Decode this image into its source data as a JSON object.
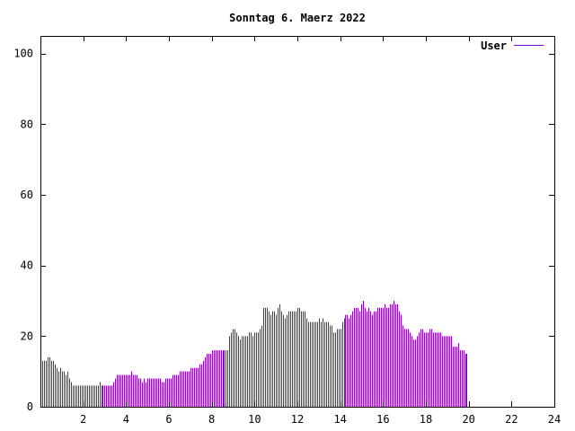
{
  "chart_data": {
    "type": "bar",
    "title": "Sonntag 6. Maerz 2022",
    "xlabel": "",
    "ylabel": "",
    "xlim": [
      0,
      24
    ],
    "ylim": [
      0,
      105
    ],
    "x_ticks": [
      2,
      4,
      6,
      8,
      10,
      12,
      14,
      16,
      18,
      20,
      22,
      24
    ],
    "y_ticks": [
      0,
      20,
      40,
      60,
      80,
      100
    ],
    "grid": false,
    "legend_position": "top-right",
    "series": [
      {
        "name": "User",
        "color": "#9400d3",
        "x_start": 0,
        "x_step": 0.0833,
        "values": [
          14,
          13,
          13,
          13,
          14,
          14,
          13,
          13,
          12,
          11,
          10,
          11,
          10,
          10,
          9,
          10,
          8,
          7,
          6,
          6,
          6,
          6,
          6,
          6,
          6,
          6,
          6,
          6,
          6,
          6,
          6,
          6,
          6,
          7,
          6,
          6,
          6,
          6,
          6,
          6,
          6,
          7,
          8,
          9,
          9,
          9,
          9,
          9,
          9,
          9,
          9,
          10,
          9,
          9,
          9,
          8,
          8,
          7,
          8,
          7,
          8,
          8,
          8,
          8,
          8,
          8,
          8,
          8,
          7,
          7,
          8,
          8,
          8,
          8,
          9,
          9,
          9,
          9,
          10,
          10,
          10,
          10,
          10,
          10,
          11,
          11,
          11,
          11,
          11,
          12,
          12,
          13,
          14,
          15,
          15,
          15,
          16,
          16,
          16,
          16,
          16,
          16,
          16,
          16,
          16,
          16,
          20,
          21,
          22,
          22,
          21,
          20,
          19,
          20,
          20,
          20,
          20,
          21,
          21,
          20,
          21,
          21,
          21,
          22,
          23,
          28,
          28,
          28,
          27,
          26,
          27,
          27,
          26,
          28,
          29,
          27,
          26,
          25,
          26,
          27,
          27,
          27,
          27,
          27,
          28,
          28,
          27,
          27,
          27,
          25,
          24,
          24,
          24,
          24,
          24,
          24,
          25,
          24,
          25,
          24,
          24,
          24,
          23,
          23,
          21,
          21,
          22,
          22,
          22,
          24,
          25,
          26,
          26,
          25,
          26,
          27,
          28,
          28,
          28,
          27,
          29,
          30,
          28,
          27,
          28,
          27,
          26,
          27,
          27,
          28,
          28,
          28,
          28,
          29,
          28,
          28,
          29,
          29,
          30,
          29,
          29,
          27,
          26,
          23,
          22,
          22,
          22,
          21,
          20,
          19,
          19,
          20,
          21,
          22,
          22,
          21,
          21,
          21,
          22,
          22,
          21,
          21,
          21,
          21,
          21,
          20,
          20,
          20,
          20,
          20,
          20,
          17,
          17,
          17,
          18,
          16,
          16,
          16,
          15,
          15
        ]
      }
    ]
  }
}
